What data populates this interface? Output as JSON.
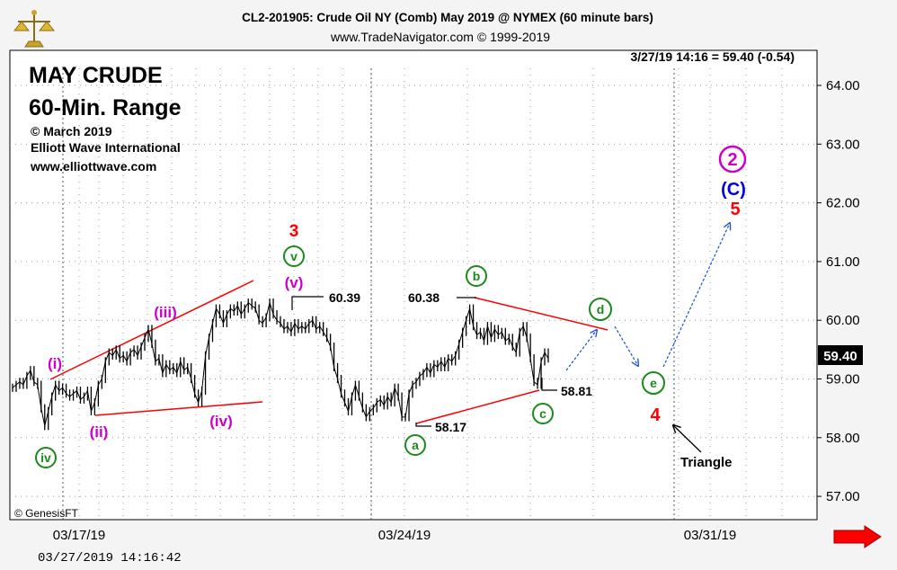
{
  "header": {
    "title": "CL2-201905:  Crude Oil NY (Comb) May 2019 @ NYMEX  (60 minute bars)",
    "subtitle": "www.TradeNavigator.com © 1999-2019",
    "quote": "3/27/19 14:16 = 59.40 (-0.54)"
  },
  "annotation_block": {
    "line1": "MAY CRUDE",
    "line2": "60-Min. Range",
    "line3": "© March 2019",
    "line4": "Elliott Wave International",
    "line5": "www.elliottwave.com"
  },
  "footer": {
    "source": "© GenesisFT",
    "timestamp": "03/27/2019  14:16:42"
  },
  "colors": {
    "background": "#ffffff",
    "frame": "#f4f4f4",
    "price": "#000000",
    "trendline": "#ff0000",
    "projection": "#1a4fe0",
    "green_label": "#1a8a1a",
    "magenta_label": "#cc00cc",
    "red_label": "#ff0000",
    "blue_label": "#0000dd"
  },
  "chart_data": {
    "type": "line",
    "ylim": [
      56.6,
      64.6
    ],
    "yticks": [
      "64.00",
      "63.00",
      "62.00",
      "61.00",
      "60.00",
      "59.00",
      "58.00",
      "57.00"
    ],
    "xticks": [
      "03/17/19",
      "03/24/19",
      "03/31/19"
    ],
    "last_price_label": "59.40",
    "series": [
      {
        "values": [
          58.85,
          58.9,
          58.95,
          58.9,
          59.05,
          59.15,
          58.95,
          58.9,
          58.5,
          58.2,
          58.45,
          58.7,
          58.9,
          58.8,
          58.85,
          58.75,
          58.7,
          58.75,
          58.8,
          58.65,
          58.7,
          58.8,
          58.45,
          58.6,
          58.9,
          59.0,
          59.3,
          59.45,
          59.4,
          59.5,
          59.35,
          59.4,
          59.3,
          59.45,
          59.5,
          59.4,
          59.55,
          59.7,
          59.85,
          59.6,
          59.3,
          59.35,
          59.1,
          59.25,
          59.15,
          59.2,
          59.1,
          59.3,
          59.15,
          59.2,
          59.0,
          58.75,
          58.6,
          58.8,
          59.4,
          59.7,
          59.95,
          60.2,
          60.1,
          59.95,
          60.1,
          60.2,
          60.15,
          60.25,
          60.1,
          60.2,
          60.3,
          60.25,
          60.2,
          60.0,
          59.95,
          60.05,
          60.3,
          60.1,
          60.0,
          59.95,
          59.85,
          59.9,
          59.8,
          59.95,
          59.85,
          59.9,
          59.85,
          59.95,
          60.0,
          59.85,
          59.9,
          59.8,
          59.7,
          59.55,
          59.2,
          59.0,
          58.75,
          58.6,
          58.45,
          58.7,
          58.9,
          58.7,
          58.5,
          58.35,
          58.45,
          58.5,
          58.6,
          58.65,
          58.55,
          58.7,
          58.6,
          58.85,
          58.7,
          58.35,
          58.35,
          58.75,
          58.9,
          58.95,
          59.05,
          59.1,
          59.2,
          59.1,
          59.25,
          59.2,
          59.3,
          59.2,
          59.35,
          59.3,
          59.4,
          59.6,
          59.8,
          60.0,
          60.2,
          59.9,
          59.75,
          59.8,
          59.65,
          59.9,
          59.7,
          59.85,
          59.75,
          59.8,
          59.65,
          59.7,
          59.55,
          59.45,
          59.8,
          59.9,
          59.7,
          59.35,
          58.95,
          58.9,
          59.3,
          59.45,
          59.35
        ]
      }
    ],
    "price_labels": [
      "60.39",
      "60.38",
      "58.17",
      "58.81"
    ],
    "wave_labels": {
      "green": [
        "iv",
        "v",
        "a",
        "b",
        "c",
        "d",
        "e"
      ],
      "magenta": [
        "(i)",
        "(ii)",
        "(iii)",
        "(iv)",
        "(v)",
        "2"
      ],
      "red": [
        "3",
        "4",
        "5"
      ],
      "blue": [
        "(C)"
      ]
    },
    "annotations": [
      "Triangle"
    ]
  }
}
